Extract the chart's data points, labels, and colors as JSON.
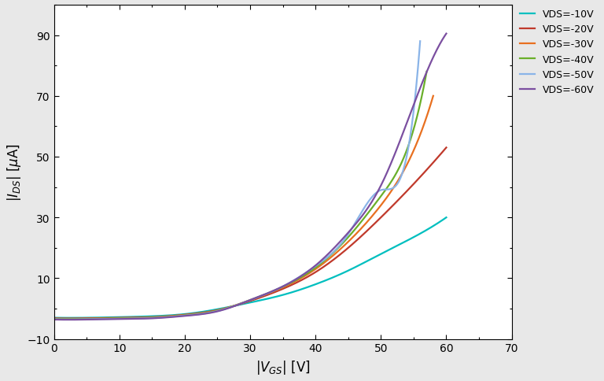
{
  "title": "",
  "xlim": [
    0,
    70
  ],
  "ylim": [
    -10,
    100
  ],
  "xticks": [
    0,
    10,
    20,
    30,
    40,
    50,
    60,
    70
  ],
  "yticks": [
    -10,
    10,
    30,
    50,
    70,
    90
  ],
  "curves": [
    {
      "label": "VDS=-10V",
      "color": "#00BFBF",
      "pts_x": [
        0,
        5,
        10,
        15,
        20,
        25,
        30,
        35,
        40,
        45,
        50,
        55,
        60
      ],
      "pts_y": [
        -3.0,
        -3.0,
        -2.8,
        -2.5,
        -1.8,
        -0.2,
        2.0,
        4.5,
        8.0,
        12.5,
        18.0,
        23.5,
        30.0
      ]
    },
    {
      "label": "VDS=-20V",
      "color": "#C0392B",
      "pts_x": [
        0,
        5,
        10,
        15,
        20,
        25,
        30,
        35,
        40,
        45,
        50,
        55,
        60
      ],
      "pts_y": [
        -3.2,
        -3.2,
        -3.0,
        -2.8,
        -2.0,
        -0.5,
        2.5,
        6.5,
        12.0,
        20.0,
        30.0,
        41.0,
        53.0
      ]
    },
    {
      "label": "VDS=-30V",
      "color": "#E87020",
      "pts_x": [
        0,
        5,
        10,
        15,
        20,
        25,
        30,
        35,
        40,
        45,
        50,
        55,
        58
      ],
      "pts_y": [
        -3.3,
        -3.3,
        -3.1,
        -2.9,
        -2.1,
        -0.6,
        2.8,
        7.0,
        13.0,
        22.0,
        34.0,
        52.0,
        70.0
      ]
    },
    {
      "label": "VDS=-40V",
      "color": "#6AAF2A",
      "pts_x": [
        0,
        5,
        10,
        15,
        20,
        25,
        30,
        35,
        40,
        45,
        50,
        55,
        57
      ],
      "pts_y": [
        -3.4,
        -3.4,
        -3.2,
        -3.0,
        -2.2,
        -0.7,
        2.8,
        7.2,
        13.5,
        23.5,
        37.0,
        59.0,
        78.0
      ]
    },
    {
      "label": "VDS=-50V",
      "color": "#8AB4E8",
      "pts_x": [
        0,
        5,
        10,
        15,
        20,
        25,
        30,
        35,
        40,
        45,
        50,
        55,
        56
      ],
      "pts_y": [
        -3.5,
        -3.5,
        -3.3,
        -3.1,
        -2.3,
        -0.8,
        2.8,
        7.3,
        14.0,
        24.5,
        39.0,
        65.0,
        88.0
      ]
    },
    {
      "label": "VDS=-60V",
      "color": "#7B4FA0",
      "pts_x": [
        0,
        5,
        10,
        15,
        20,
        25,
        30,
        35,
        40,
        45,
        50,
        55,
        60
      ],
      "pts_y": [
        -3.6,
        -3.6,
        -3.4,
        -3.2,
        -2.4,
        -0.9,
        2.8,
        7.3,
        14.2,
        25.0,
        40.5,
        67.0,
        90.5
      ]
    }
  ],
  "legend_fontsize": 9,
  "axis_fontsize": 12,
  "tick_fontsize": 10,
  "linewidth": 1.6,
  "figure_facecolor": "#e8e8e8",
  "axes_facecolor": "#ffffff"
}
